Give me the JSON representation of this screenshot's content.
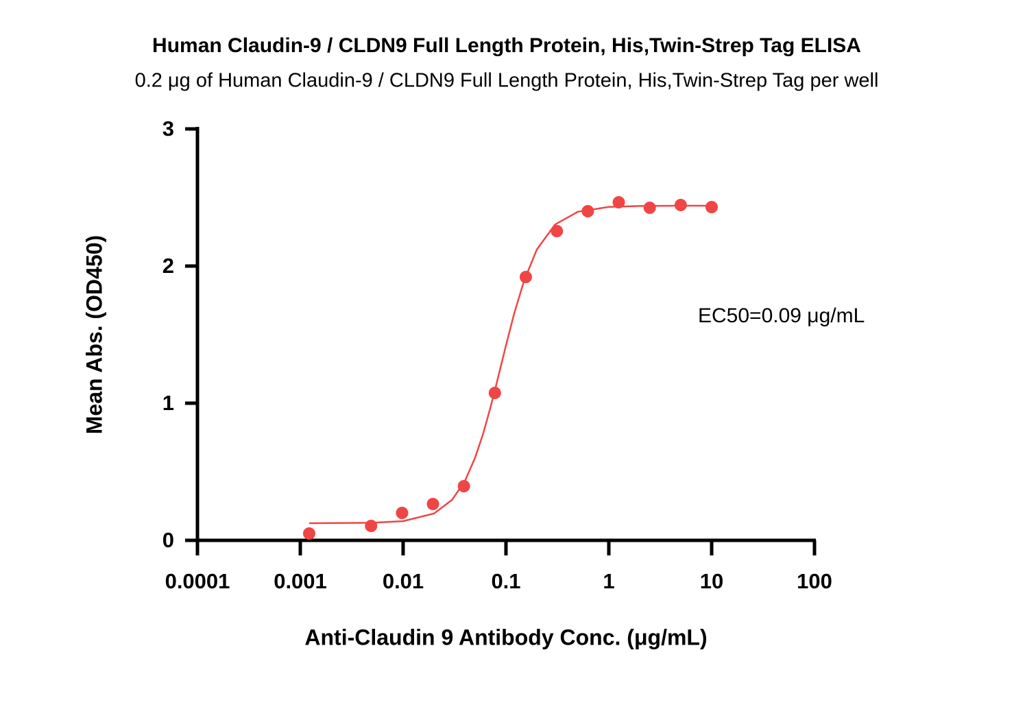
{
  "chart_data": {
    "type": "scatter",
    "title": "Human Claudin-9 / CLDN9 Full Length Protein, His,Twin-Strep Tag ELISA",
    "subtitle": "0.2 μg of Human Claudin-9 / CLDN9 Full Length Protein, His,Twin-Strep Tag per well",
    "x_label": "Anti-Claudin 9 Antibody Conc. (μg/mL)",
    "y_label": "Mean Abs. (OD450)",
    "annotation": "EC50=0.09 μg/mL",
    "xscale": "log",
    "xlim": [
      0.0001,
      100
    ],
    "xticks": [
      0.0001,
      0.001,
      0.01,
      0.1,
      1,
      10,
      100
    ],
    "ylim": [
      0,
      3
    ],
    "yticks": [
      0,
      1,
      2,
      3
    ],
    "series": [
      {
        "type": "scatter",
        "color": "#f04545",
        "x": [
          0.00122,
          0.00488,
          0.00977,
          0.0195,
          0.039,
          0.078,
          0.156,
          0.3125,
          0.625,
          1.25,
          2.5,
          5,
          10
        ],
        "values": [
          0.05,
          0.105,
          0.2,
          0.265,
          0.395,
          1.075,
          1.92,
          2.255,
          2.4,
          2.465,
          2.425,
          2.445,
          2.43
        ]
      },
      {
        "type": "line",
        "color": "#f04545",
        "x": [
          0.00122,
          0.005,
          0.01,
          0.02,
          0.03,
          0.04,
          0.05,
          0.06,
          0.07,
          0.08,
          0.09,
          0.1,
          0.12,
          0.15,
          0.2,
          0.3,
          0.5,
          1,
          2,
          5,
          10
        ],
        "values": [
          0.125,
          0.128,
          0.14,
          0.196,
          0.296,
          0.435,
          0.601,
          0.778,
          0.958,
          1.127,
          1.283,
          1.421,
          1.652,
          1.893,
          2.122,
          2.303,
          2.396,
          2.431,
          2.438,
          2.44,
          2.44
        ]
      }
    ]
  }
}
